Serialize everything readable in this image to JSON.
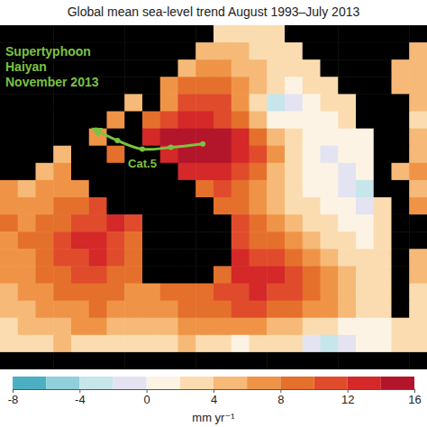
{
  "chart_data": {
    "type": "heatmap",
    "title": "Global mean sea-level trend August 1993–July 2013",
    "tick_labels": false,
    "xlim": [
      0,
      24
    ],
    "ylim": [
      0,
      20
    ],
    "cells": [
      [
        null,
        null,
        null,
        null,
        null,
        null,
        null,
        null,
        null,
        null,
        null,
        null,
        2,
        3,
        3,
        2,
        null,
        null,
        null,
        null,
        null,
        null,
        null,
        null
      ],
      [
        null,
        null,
        null,
        null,
        null,
        null,
        null,
        null,
        null,
        null,
        null,
        4,
        5,
        4,
        3,
        3,
        2,
        null,
        null,
        null,
        null,
        null,
        null,
        5
      ],
      [
        null,
        null,
        null,
        null,
        null,
        null,
        null,
        null,
        null,
        null,
        5,
        6,
        6,
        5,
        4,
        3,
        3,
        2,
        null,
        null,
        null,
        null,
        4,
        5
      ],
      [
        null,
        null,
        null,
        null,
        null,
        null,
        null,
        null,
        null,
        6,
        8,
        9,
        8,
        6,
        4,
        2,
        1,
        2,
        3,
        null,
        null,
        null,
        5,
        4
      ],
      [
        null,
        null,
        null,
        null,
        null,
        null,
        null,
        5,
        null,
        7,
        10,
        11,
        10,
        7,
        3,
        -4,
        -1,
        1,
        2,
        3,
        null,
        null,
        null,
        4
      ],
      [
        null,
        null,
        null,
        null,
        null,
        null,
        6,
        null,
        9,
        11,
        12,
        12,
        11,
        8,
        4,
        0,
        1,
        1,
        1,
        2,
        null,
        null,
        null,
        3
      ],
      [
        null,
        null,
        null,
        null,
        null,
        6,
        null,
        null,
        12,
        14,
        15,
        15,
        14,
        12,
        8,
        4,
        2,
        1,
        0,
        1,
        1,
        null,
        null,
        4
      ],
      [
        null,
        null,
        null,
        5,
        null,
        null,
        8,
        null,
        null,
        13,
        15,
        16,
        15,
        13,
        11,
        7,
        3,
        1,
        -1,
        0,
        1,
        null,
        null,
        5
      ],
      [
        null,
        null,
        5,
        6,
        null,
        null,
        null,
        null,
        null,
        null,
        12,
        13,
        12,
        10,
        8,
        5,
        3,
        1,
        0,
        -1,
        0,
        null,
        5,
        6
      ],
      [
        6,
        5,
        6,
        7,
        7,
        null,
        null,
        null,
        null,
        null,
        null,
        9,
        10,
        8,
        6,
        4,
        2,
        1,
        0,
        -2,
        -3,
        null,
        null,
        5
      ],
      [
        7,
        6,
        7,
        8,
        9,
        10,
        null,
        null,
        null,
        null,
        null,
        null,
        9,
        9,
        7,
        5,
        3,
        2,
        1,
        0,
        -1,
        2,
        null,
        6
      ],
      [
        8,
        7,
        8,
        9,
        10,
        11,
        12,
        10,
        null,
        null,
        null,
        null,
        null,
        10,
        8,
        6,
        4,
        3,
        2,
        1,
        0,
        2,
        null,
        null
      ],
      [
        7,
        8,
        9,
        11,
        12,
        12,
        11,
        9,
        null,
        null,
        null,
        null,
        null,
        11,
        9,
        8,
        6,
        4,
        3,
        2,
        1,
        3,
        null,
        null
      ],
      [
        6,
        7,
        8,
        10,
        11,
        12,
        10,
        8,
        null,
        null,
        null,
        null,
        null,
        12,
        11,
        10,
        8,
        6,
        4,
        3,
        2,
        3,
        null,
        4
      ],
      [
        6,
        7,
        8,
        9,
        10,
        10,
        9,
        8,
        null,
        null,
        null,
        null,
        9,
        12,
        13,
        12,
        10,
        8,
        6,
        4,
        3,
        3,
        null,
        4
      ],
      [
        5,
        6,
        7,
        8,
        8,
        9,
        8,
        7,
        7,
        8,
        9,
        9,
        10,
        11,
        12,
        11,
        10,
        9,
        7,
        5,
        3,
        3,
        null,
        3
      ],
      [
        4,
        5,
        6,
        7,
        7,
        8,
        7,
        6,
        6,
        7,
        8,
        8,
        9,
        10,
        10,
        9,
        8,
        7,
        6,
        4,
        3,
        2,
        null,
        3
      ],
      [
        3,
        4,
        5,
        5,
        6,
        6,
        5,
        4,
        4,
        5,
        6,
        6,
        7,
        7,
        6,
        5,
        4,
        3,
        2,
        1,
        0,
        1,
        3,
        2
      ],
      [
        2,
        3,
        3,
        4,
        3,
        2,
        3,
        2,
        2,
        3,
        4,
        3,
        2,
        1,
        2,
        3,
        2,
        -2,
        -4,
        -1,
        0,
        1,
        2,
        3
      ],
      [
        null,
        null,
        null,
        null,
        null,
        null,
        null,
        null,
        null,
        null,
        null,
        null,
        null,
        null,
        null,
        null,
        null,
        null,
        null,
        null,
        null,
        null,
        null,
        null
      ]
    ],
    "colors": [
      "#4db0c2",
      "#8fd0da",
      "#c6e6ec",
      "#e4e3f1",
      "#fdf3e4",
      "#fbdcb0",
      "#f6b977",
      "#ef9447",
      "#e4702c",
      "#e04b2c",
      "#d42829",
      "#b3152b"
    ],
    "colorbar": {
      "range": [
        -8,
        16
      ],
      "ticks": [
        -8,
        -4,
        0,
        4,
        8,
        12,
        16
      ],
      "bins": [
        -8,
        -6,
        -4,
        -2,
        0,
        2,
        4,
        6,
        8,
        10,
        12,
        14,
        16
      ],
      "label": "mm yr⁻¹"
    },
    "annotations": [
      {
        "lines": [
          "Supertyphoon",
          "Haiyan",
          "November 2013"
        ],
        "color": "#7cc242"
      }
    ],
    "track": {
      "label": "Cat.5",
      "color": "#7cc242",
      "x": [
        11.4,
        9.6,
        8.0,
        6.6,
        5.4
      ],
      "y": [
        6.9,
        7.1,
        7.2,
        6.7,
        6.1
      ]
    }
  }
}
